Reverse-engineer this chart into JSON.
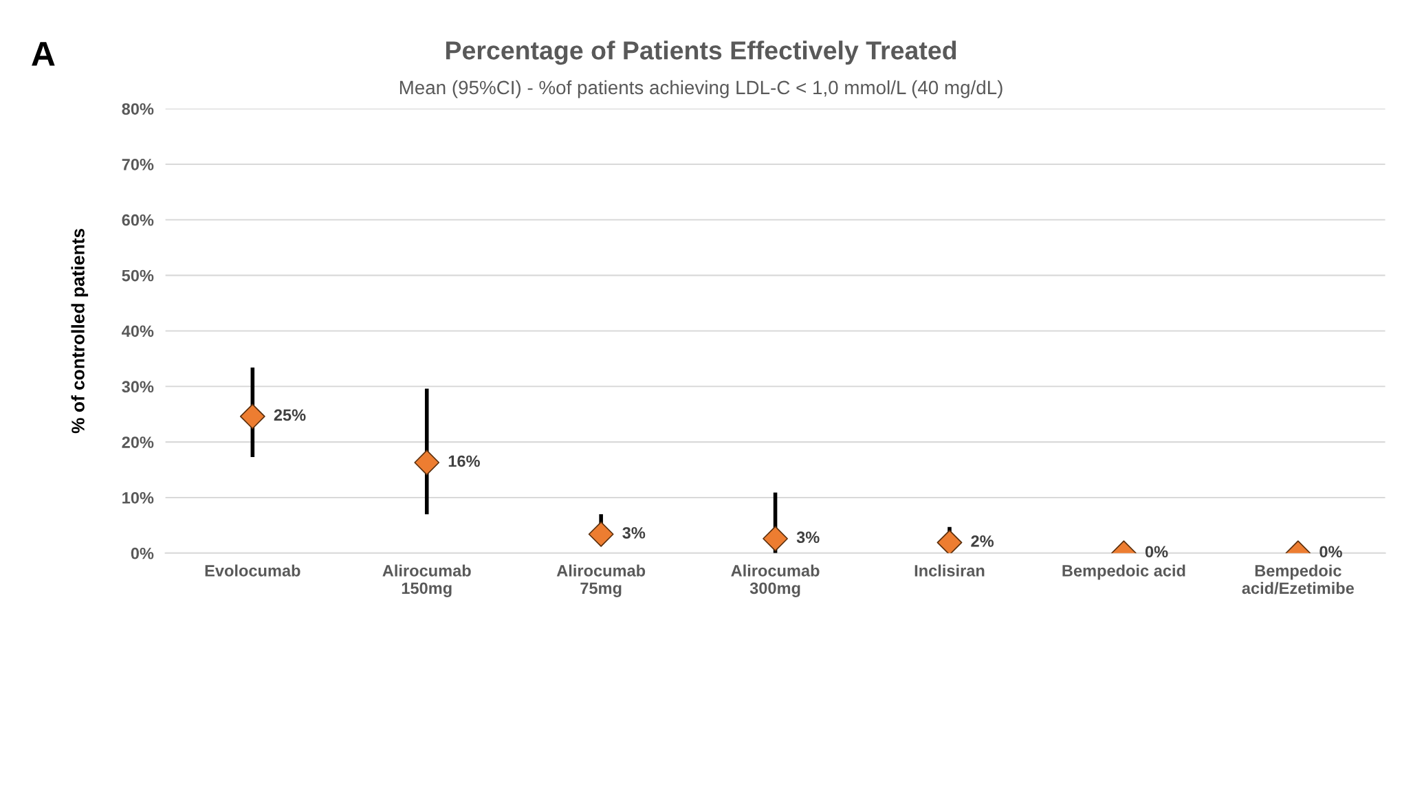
{
  "chart_data": {
    "type": "scatter",
    "title": "Percentage of Patients Effectively Treated",
    "subtitle": "Mean (95%CI) - %of patients achieving LDL-C < 1,0 mmol/L (40 mg/dL)",
    "ylabel": "% of controlled patients",
    "categories": [
      "Evolocumab",
      "Alirocumab\n150mg",
      "Alirocumab\n75mg",
      "Alirocumab\n300mg",
      "Inclisiran",
      "Bempedoic acid",
      "Bempedoic\nacid/Ezetimibe"
    ],
    "values": [
      24.6,
      16.3,
      3.4,
      2.6,
      1.9,
      0,
      0
    ],
    "errors": [
      [
        17.3,
        33.4
      ],
      [
        7.0,
        29.6
      ],
      [
        1.7,
        7.0
      ],
      [
        0,
        10.9
      ],
      [
        0.1,
        4.7
      ],
      null,
      null
    ],
    "value_labels": [
      "25%",
      "16%",
      "3%",
      "3%",
      "2%",
      "0%",
      "0%"
    ],
    "color": "#ed7d31",
    "marker": "diamond",
    "grid": "y",
    "ylim": [
      0,
      80
    ],
    "yticks": [
      {
        "value": 0,
        "label": "0%"
      },
      {
        "value": 10,
        "label": "10%"
      },
      {
        "value": 20,
        "label": "20%"
      },
      {
        "value": 30,
        "label": "30%"
      },
      {
        "value": 40,
        "label": "40%"
      },
      {
        "value": 50,
        "label": "50%"
      },
      {
        "value": 60,
        "label": "60%"
      },
      {
        "value": 70,
        "label": "70%"
      },
      {
        "value": 80,
        "label": "80%"
      }
    ],
    "annotations": [
      "A"
    ]
  }
}
